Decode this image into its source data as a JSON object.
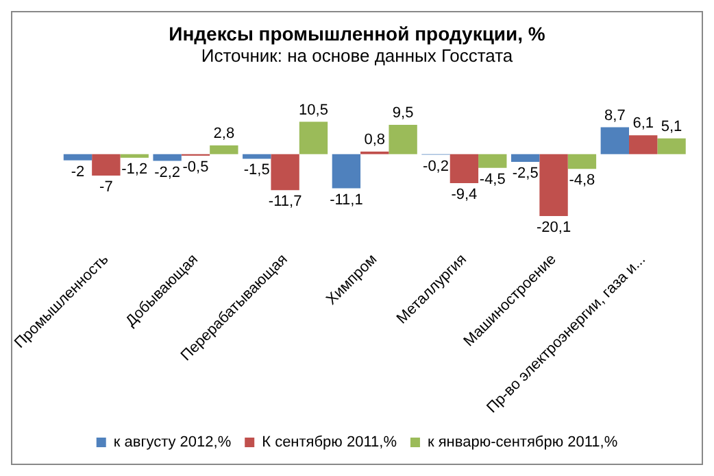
{
  "chart_data": {
    "type": "bar",
    "title": "Индексы промышленной продукции, %",
    "subtitle": "Источник: на основе данных Госстата",
    "categories": [
      "Промышленность",
      "Добывающая",
      "Перерабатывающая",
      "Химпром",
      "Металлургия",
      "Машиностроение",
      "Пр-во электроэнергии, газа и..."
    ],
    "series": [
      {
        "name": "к августу 2012,%",
        "color": "#4f81bd",
        "values": [
          -2,
          -2.2,
          -1.5,
          -11.1,
          -0.2,
          -2.5,
          8.7
        ],
        "value_labels": [
          "-2",
          "-2,2",
          "-1,5",
          "-11,1",
          "-0,2",
          "-2,5",
          "8,7"
        ]
      },
      {
        "name": "К сентябрю 2011,%",
        "color": "#c0504d",
        "values": [
          -7,
          -0.5,
          -11.7,
          0.8,
          -9.4,
          -20.1,
          6.1
        ],
        "value_labels": [
          "-7",
          "-0,5",
          "-11,7",
          "0,8",
          "-9,4",
          "-20,1",
          "6,1"
        ]
      },
      {
        "name": "к январю-сентябрю 2011,%",
        "color": "#9bbb59",
        "values": [
          -1.2,
          2.8,
          10.5,
          9.5,
          -4.5,
          -4.8,
          5.1
        ],
        "value_labels": [
          "-1,2",
          "2,8",
          "10,5",
          "9,5",
          "-4,5",
          "-4,8",
          "5,1"
        ]
      }
    ],
    "grid": false,
    "legend": "bottom"
  }
}
